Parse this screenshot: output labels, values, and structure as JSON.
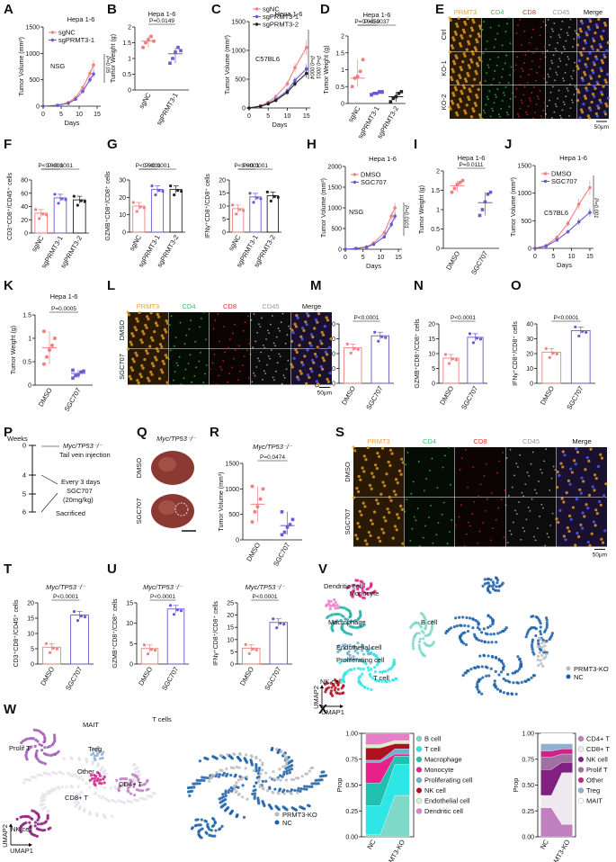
{
  "panel_letters": [
    "A",
    "B",
    "C",
    "D",
    "E",
    "F",
    "G",
    "H",
    "I",
    "J",
    "K",
    "L",
    "M",
    "N",
    "O",
    "P",
    "Q",
    "R",
    "S",
    "T",
    "U",
    "V",
    "W",
    "X"
  ],
  "colors": {
    "red": "#f08080",
    "blue": "#6a5acd",
    "black": "#222222",
    "orange": "#e8a020",
    "green": "#3cb371",
    "crimson": "#e0303a",
    "gray": "#bbbbbb"
  },
  "chart_data": [
    {
      "id": "A",
      "type": "line",
      "title": "Hepa 1-6",
      "ylabel": "Tumor Volume (mm³)",
      "xlabel": "Days",
      "annotation": "NSG",
      "pval": "P=0.05",
      "xlim": [
        0,
        16
      ],
      "ylim": [
        0,
        1500
      ],
      "yticks": [
        0,
        500,
        1000,
        1500
      ],
      "xticks": [
        0,
        5,
        10,
        15
      ],
      "series": [
        {
          "name": "sgNC",
          "x": [
            0,
            4,
            7,
            9,
            11,
            13,
            14
          ],
          "values": [
            0,
            20,
            70,
            160,
            350,
            620,
            780
          ]
        },
        {
          "name": "sgPRMT3-1",
          "x": [
            0,
            4,
            7,
            9,
            11,
            13,
            14
          ],
          "values": [
            0,
            15,
            55,
            130,
            280,
            500,
            610
          ]
        }
      ]
    },
    {
      "id": "B",
      "type": "scatter_bar",
      "title": "Hepa 1-6",
      "ylabel": "Tumor Weight (g)",
      "ylim": [
        0,
        2.0
      ],
      "yticks": [
        0.0,
        0.5,
        1.0,
        1.5,
        2.0
      ],
      "categories": [
        "sgNC",
        "sgPRMT3-1"
      ],
      "values": [
        1.55,
        1.15
      ],
      "points": [
        [
          1.35,
          1.5,
          1.6,
          1.7,
          1.55
        ],
        [
          0.85,
          1.0,
          1.2,
          1.35,
          1.25
        ]
      ],
      "comparisons": [
        {
          "text": "P=0.0149"
        }
      ]
    },
    {
      "id": "C",
      "type": "line",
      "title": "Hepa 1-6",
      "ylabel": "Tumor Volume (mm³)",
      "xlabel": "Days",
      "annotation": "C57BL6",
      "pvals": [
        "P=0.0004",
        "P=0.0001"
      ],
      "xlim": [
        0,
        16
      ],
      "ylim": [
        0,
        1500
      ],
      "yticks": [
        0,
        500,
        1000,
        1500
      ],
      "xticks": [
        0,
        5,
        10,
        15
      ],
      "series": [
        {
          "name": "sgNC",
          "x": [
            0,
            3,
            5,
            7,
            10,
            12,
            15
          ],
          "values": [
            0,
            40,
            100,
            200,
            420,
            700,
            1050
          ]
        },
        {
          "name": "sgPRMT3-1",
          "x": [
            0,
            3,
            5,
            7,
            10,
            12,
            15
          ],
          "values": [
            0,
            30,
            80,
            150,
            300,
            480,
            680
          ]
        },
        {
          "name": "sgPRMT3-2",
          "x": [
            0,
            3,
            5,
            7,
            10,
            12,
            15
          ],
          "values": [
            0,
            28,
            70,
            130,
            270,
            420,
            600
          ]
        }
      ]
    },
    {
      "id": "D",
      "type": "scatter_bar",
      "title": "Hepa 1-6",
      "ylabel": "Tumor Weight (g)",
      "ylim": [
        0,
        2.0
      ],
      "yticks": [
        0.0,
        0.5,
        1.0,
        1.5,
        2.0
      ],
      "categories": [
        "sgNC",
        "sgPRMT3-1",
        "sgPRMT3-2"
      ],
      "values": [
        0.75,
        0.3,
        0.2
      ],
      "points": [
        [
          0.5,
          0.75,
          0.8,
          0.95,
          1.3
        ],
        [
          0.25,
          0.3,
          0.3,
          0.35,
          0.35
        ],
        [
          0.05,
          0.15,
          0.2,
          0.3,
          0.35
        ]
      ],
      "comparisons": [
        {
          "text": "P=0.0037"
        },
        {
          "text": "P=0.0059"
        }
      ]
    },
    {
      "id": "F",
      "type": "bar",
      "ylabel": "CD3⁺CD8⁺/CD45⁺ cells",
      "ylim": [
        0,
        80
      ],
      "yticks": [
        0,
        20,
        40,
        60,
        80
      ],
      "categories": [
        "sgNC",
        "sgPRMT3-1",
        "sgPRMT3-2"
      ],
      "values": [
        30,
        53,
        50
      ],
      "comparisons": [
        {
          "text": "P<0.0001"
        },
        {
          "text": "P<0.0001"
        }
      ]
    },
    {
      "id": "G1",
      "type": "bar",
      "ylabel": "GZMB⁺CD8⁺/CD8⁺ cells",
      "ylim": [
        0,
        30
      ],
      "yticks": [
        0,
        10,
        20,
        30
      ],
      "categories": [
        "sgNC",
        "sgPRMT3-1",
        "sgPRMT3-2"
      ],
      "values": [
        15,
        24.5,
        24.5
      ],
      "comparisons": [
        {
          "text": "P<0.0001"
        },
        {
          "text": "P<0.0001"
        }
      ]
    },
    {
      "id": "G2",
      "type": "bar",
      "ylabel": "IFNγ⁺CD8⁺/CD8⁺ cells",
      "ylim": [
        0,
        20
      ],
      "yticks": [
        0,
        5,
        10,
        15,
        20
      ],
      "categories": [
        "sgNC",
        "sgPRMT3-1",
        "sgPRMT3-2"
      ],
      "values": [
        9,
        13.5,
        14
      ],
      "comparisons": [
        {
          "text": "P<0.0001"
        },
        {
          "text": "P<0.0001"
        }
      ]
    },
    {
      "id": "H",
      "type": "line",
      "title": "Hepa 1-6",
      "ylabel": "Tumor Volume (mm³)",
      "xlabel": "Days",
      "annotation": "NSG",
      "pval": "P=0.0101",
      "xlim": [
        0,
        16
      ],
      "ylim": [
        0,
        2000
      ],
      "yticks": [
        0,
        500,
        1000,
        1500,
        2000
      ],
      "xticks": [
        0,
        5,
        10,
        15
      ],
      "series": [
        {
          "name": "DMSO",
          "x": [
            0,
            3,
            6,
            8,
            11,
            13,
            14
          ],
          "values": [
            0,
            20,
            60,
            150,
            400,
            800,
            1000
          ]
        },
        {
          "name": "SGC707",
          "x": [
            0,
            3,
            6,
            8,
            11,
            13,
            14
          ],
          "values": [
            0,
            18,
            50,
            120,
            300,
            600,
            800
          ]
        }
      ]
    },
    {
      "id": "I",
      "type": "scatter_bar",
      "title": "Hepa 1-6",
      "ylabel": "Tumor Weight (g)",
      "ylim": [
        0,
        2.0
      ],
      "yticks": [
        0.0,
        0.5,
        1.0,
        1.5,
        2.0
      ],
      "categories": [
        "DMSO",
        "SGC707"
      ],
      "values": [
        1.62,
        1.18
      ],
      "points": [
        [
          1.45,
          1.55,
          1.65,
          1.7,
          1.75
        ],
        [
          0.85,
          1.0,
          1.2,
          1.4,
          1.45
        ]
      ],
      "comparisons": [
        {
          "text": "P=0.0111"
        }
      ]
    },
    {
      "id": "J",
      "type": "line",
      "title": "Hepa 1-6",
      "ylabel": "Tumor Volume (mm³)",
      "xlabel": "Days",
      "annotation": "C57BL6",
      "pval": "P=0.001",
      "xlim": [
        0,
        16
      ],
      "ylim": [
        0,
        1500
      ],
      "yticks": [
        0,
        500,
        1000,
        1500
      ],
      "xticks": [
        0,
        5,
        10,
        15
      ],
      "series": [
        {
          "name": "DMSO",
          "x": [
            0,
            3,
            6,
            9,
            12,
            15
          ],
          "values": [
            0,
            50,
            200,
            450,
            800,
            1100
          ]
        },
        {
          "name": "SGC707",
          "x": [
            0,
            3,
            6,
            9,
            12,
            15
          ],
          "values": [
            0,
            40,
            150,
            300,
            480,
            650
          ]
        }
      ]
    },
    {
      "id": "K",
      "type": "scatter_bar",
      "title": "Hepa 1-6",
      "ylabel": "Tumor Weight (g)",
      "ylim": [
        0,
        1.5
      ],
      "yticks": [
        0.0,
        0.5,
        1.0,
        1.5
      ],
      "categories": [
        "DMSO",
        "SGC707"
      ],
      "values": [
        0.8,
        0.25
      ],
      "points": [
        [
          0.45,
          0.6,
          0.75,
          0.85,
          1.0,
          1.15
        ],
        [
          0.15,
          0.2,
          0.22,
          0.28,
          0.3,
          0.32
        ]
      ],
      "comparisons": [
        {
          "text": "P=0.0005"
        }
      ]
    },
    {
      "id": "M",
      "type": "bar",
      "ylabel": "CD3⁺CD8⁺/CD45⁺ cells",
      "ylim": [
        0,
        40
      ],
      "yticks": [
        0,
        10,
        20,
        30,
        40
      ],
      "categories": [
        "DMSO",
        "SGC707"
      ],
      "values": [
        24,
        32
      ],
      "comparisons": [
        {
          "text": "P<0.0001"
        }
      ]
    },
    {
      "id": "N",
      "type": "bar",
      "ylabel": "GZMB⁺CD8⁺/CD8⁺ cells",
      "ylim": [
        0,
        20
      ],
      "yticks": [
        0,
        5,
        10,
        15,
        20
      ],
      "categories": [
        "DMSO",
        "SGC707"
      ],
      "values": [
        8.5,
        15.5
      ],
      "comparisons": [
        {
          "text": "P<0.0001"
        }
      ]
    },
    {
      "id": "O",
      "type": "bar",
      "ylabel": "IFNγ⁺CD8⁺/CD8⁺ cells",
      "ylim": [
        0,
        40
      ],
      "yticks": [
        0,
        10,
        20,
        30,
        40
      ],
      "categories": [
        "DMSO",
        "SGC707"
      ],
      "values": [
        21,
        35.5
      ],
      "comparisons": [
        {
          "text": "P<0.0001"
        }
      ]
    },
    {
      "id": "R",
      "type": "scatter_bar",
      "title": "Myc/TP53⁻/⁻",
      "ylabel": "Tumor Volume (mm³)",
      "ylim": [
        0,
        1500
      ],
      "yticks": [
        0,
        500,
        1000,
        1500
      ],
      "categories": [
        "DMSO",
        "SGC707"
      ],
      "values": [
        700,
        280
      ],
      "points": [
        [
          350,
          550,
          650,
          800,
          1000,
          1050
        ],
        [
          100,
          150,
          250,
          300,
          400,
          550
        ]
      ],
      "comparisons": [
        {
          "text": "P=0.0474"
        }
      ]
    },
    {
      "id": "T",
      "type": "bar",
      "title": "Myc/TP53⁻/⁻",
      "ylabel": "CD3⁺CD8⁺/CD45⁺ cells",
      "ylim": [
        0,
        20
      ],
      "yticks": [
        0,
        5,
        10,
        15,
        20
      ],
      "categories": [
        "DMSO",
        "SGC707"
      ],
      "values": [
        5.5,
        16
      ],
      "comparisons": [
        {
          "text": "P<0.0001"
        }
      ]
    },
    {
      "id": "U1",
      "type": "bar",
      "title": "Myc/TP53⁻/⁻",
      "ylabel": "GZMB⁺CD8⁺/CD8⁺ cells",
      "ylim": [
        0,
        15
      ],
      "yticks": [
        0,
        5,
        10,
        15
      ],
      "categories": [
        "DMSO",
        "SGC707"
      ],
      "values": [
        3.8,
        13.5
      ],
      "comparisons": [
        {
          "text": "P<0.0001"
        }
      ]
    },
    {
      "id": "U2",
      "type": "bar",
      "title": "Myc/TP53⁻/⁻",
      "ylabel": "IFNγ⁺CD8⁺/CD8⁺ cells",
      "ylim": [
        0,
        25
      ],
      "yticks": [
        0,
        5,
        10,
        15,
        20,
        25
      ],
      "categories": [
        "DMSO",
        "SGC707"
      ],
      "values": [
        6.5,
        17
      ],
      "comparisons": [
        {
          "text": "P<0.0001"
        }
      ]
    },
    {
      "id": "X1",
      "type": "area",
      "ylabel": "Prop",
      "categories": [
        "NC",
        "PRMT3-KO"
      ],
      "ylim": [
        0,
        1
      ],
      "yticks": [
        "0.00",
        "0.25",
        "0.50",
        "0.75",
        "1.00"
      ],
      "series": [
        {
          "name": "B cell",
          "color": "#7fd8c8",
          "values": [
            0.02,
            0.4
          ]
        },
        {
          "name": "T cell",
          "color": "#2ee6e6",
          "values": [
            0.28,
            0.3
          ]
        },
        {
          "name": "Macrophage",
          "color": "#20c0b0",
          "values": [
            0.22,
            0.08
          ]
        },
        {
          "name": "Monocyte",
          "color": "#e8208a",
          "values": [
            0.2,
            0.02
          ]
        },
        {
          "name": "Proliferating cell",
          "color": "#6fb0d0",
          "values": [
            0.02,
            0.05
          ]
        },
        {
          "name": "NK cell",
          "color": "#b01020",
          "values": [
            0.12,
            0.05
          ]
        },
        {
          "name": "Endothelial cell",
          "color": "#d8f0c8",
          "values": [
            0.03,
            0.03
          ]
        },
        {
          "name": "Dendritic cell",
          "color": "#e67fc8",
          "values": [
            0.11,
            0.07
          ]
        }
      ]
    },
    {
      "id": "X2",
      "type": "area",
      "ylabel": "Prop",
      "categories": [
        "NC",
        "PRMT3-KO"
      ],
      "ylim": [
        0,
        1
      ],
      "yticks": [
        "0.00",
        "0.25",
        "0.50",
        "0.75",
        "1.00"
      ],
      "series": [
        {
          "name": "CD4+ T",
          "color": "#c080c0",
          "values": [
            0.28,
            0.12
          ]
        },
        {
          "name": "CD8+ T",
          "color": "#f0e8f0",
          "values": [
            0.12,
            0.5
          ]
        },
        {
          "name": "NK cell",
          "color": "#802080",
          "values": [
            0.25,
            0.1
          ]
        },
        {
          "name": "Prolif T",
          "color": "#a070a0",
          "values": [
            0.12,
            0.08
          ]
        },
        {
          "name": "Other",
          "color": "#d0208a",
          "values": [
            0.06,
            0.05
          ]
        },
        {
          "name": "Treg",
          "color": "#90b0d0",
          "values": [
            0.07,
            0.05
          ]
        },
        {
          "name": "MAIT",
          "color": "#ffffff",
          "values": [
            0.1,
            0.1
          ]
        }
      ]
    }
  ],
  "if_panels": {
    "E": {
      "channels": [
        "PRMT3",
        "CD4",
        "CD8",
        "CD45",
        "Merge"
      ],
      "rows": [
        "Ctrl",
        "KO-1",
        "KO-2"
      ],
      "scale": "50μm"
    },
    "L": {
      "channels": [
        "PRMT3",
        "CD4",
        "CD8",
        "CD45",
        "Merge"
      ],
      "rows": [
        "DMSO",
        "SGC707"
      ],
      "scale": "50μm"
    },
    "S": {
      "channels": [
        "PRMT3",
        "CD4",
        "CD8",
        "CD45",
        "Merge"
      ],
      "rows": [
        "DMSO",
        "SGC707"
      ],
      "scale": "50μm"
    }
  },
  "timeline": {
    "header": "Weeks",
    "ticks": [
      "0",
      "4",
      "5",
      "6"
    ],
    "events": [
      "Myc/TP53⁻/⁻",
      "Tail vein injection",
      "Every 3 days",
      "SGC707",
      "(20mg/kg)",
      "Sacrificed"
    ]
  },
  "liver": {
    "title": "Myc/TP53⁻/⁻",
    "rows": [
      "DMSO",
      "SGC707"
    ]
  },
  "umap_v": {
    "labels": [
      "Monocyte",
      "Dendritic cell",
      "Macrophage",
      "B cell",
      "Endothelial cell",
      "Proliferating cell",
      "T cell",
      "NK cell"
    ],
    "legend": [
      "PRMT3-KO",
      "NC"
    ],
    "xlabel": "UMAP1",
    "ylabel": "UMAP2"
  },
  "umap_w": {
    "title": "T cells",
    "labels": [
      "Prolif T",
      "MAIT",
      "Treg",
      "Other",
      "CD4+ T",
      "CD8+ T",
      "NK cell"
    ],
    "legend": [
      "PRMT3-KO",
      "NC"
    ],
    "xlabel": "UMAP1",
    "ylabel": "UMAP2"
  }
}
